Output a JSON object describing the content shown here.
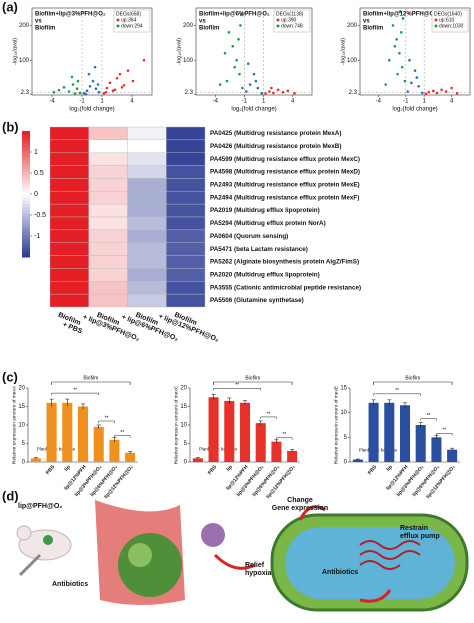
{
  "panel_labels": [
    "(a)",
    "(b)",
    "(c)",
    "(d)"
  ],
  "chart_data": [
    {
      "type": "volcano",
      "title_lines": [
        "Biofilm+lip@3%PFH@O₂",
        "vs",
        "Biofilm"
      ],
      "legend_title": "DEGs(658)",
      "xlabel": "log₂(fold change)",
      "ylabel": "-log₁₀(qval)",
      "xlim": [
        -6,
        6
      ],
      "ylim": [
        0,
        250
      ],
      "xticks": [
        -4,
        -1,
        1,
        4
      ],
      "yticks": [
        2.3,
        100,
        200
      ],
      "series": [
        {
          "name": "up:364",
          "color": "#e8312a",
          "x": [
            1.2,
            1.5,
            1.8,
            2.1,
            2.5,
            2.8,
            3.2,
            3.6,
            4.1,
            5.2,
            1.4,
            2.3,
            3.0
          ],
          "values": [
            5,
            20,
            35,
            12,
            48,
            60,
            28,
            70,
            40,
            100,
            8,
            15,
            22
          ]
        },
        {
          "name": "down:294",
          "color": "#1f9a4a",
          "x": [
            -1.2,
            -1.5,
            -1.9,
            -2.3,
            -2.8,
            -3.3,
            -1.4,
            -2.0,
            -3.8,
            -1.7
          ],
          "values": [
            6,
            18,
            30,
            10,
            22,
            14,
            40,
            52,
            8,
            4
          ]
        },
        {
          "color": "#2f6fb5",
          "x": [
            -0.8,
            -0.5,
            -0.2,
            0.1,
            0.4,
            0.7,
            -0.3,
            0.3,
            -0.6,
            0.6
          ],
          "values": [
            5,
            12,
            25,
            40,
            18,
            8,
            60,
            80,
            2,
            30
          ]
        }
      ]
    },
    {
      "type": "volcano",
      "title_lines": [
        "Biofilm+lip@6%PFH@O₂",
        "vs",
        "Biofilm"
      ],
      "legend_title": "DEGs(1138)",
      "xlabel": "log₂(fold change)",
      "ylabel": "-log₁₀(qval)",
      "xlim": [
        -6,
        6
      ],
      "ylim": [
        0,
        250
      ],
      "xticks": [
        -4,
        -1,
        1,
        4
      ],
      "yticks": [
        2.3,
        100,
        200
      ],
      "series": [
        {
          "name": "up:390",
          "color": "#e8312a",
          "x": [
            1.2,
            1.6,
            2.0,
            2.5,
            3.0,
            3.5,
            4.2,
            1.8
          ],
          "values": [
            4,
            10,
            6,
            15,
            8,
            12,
            5,
            20
          ]
        },
        {
          "name": "down:748",
          "color": "#1f9a4a",
          "x": [
            -1.2,
            -1.5,
            -1.8,
            -2.2,
            -2.6,
            -3.0,
            -1.4,
            -2.0,
            -1.6,
            -2.8,
            -3.5,
            -1.3
          ],
          "values": [
            20,
            60,
            100,
            140,
            180,
            120,
            200,
            80,
            160,
            40,
            30,
            230
          ]
        },
        {
          "color": "#2f6fb5",
          "x": [
            -0.8,
            -0.4,
            0,
            0.4,
            0.8,
            -0.6,
            0.2
          ],
          "values": [
            10,
            30,
            60,
            20,
            5,
            90,
            40
          ]
        }
      ]
    },
    {
      "type": "volcano",
      "title_lines": [
        "Biofilm+lip@12%PFH@O₂",
        "vs",
        "Biofilm"
      ],
      "legend_title": "DEGs(1640)",
      "xlabel": "log₂(fold change)",
      "ylabel": "-log₁₀(qval)",
      "xlim": [
        -6,
        6
      ],
      "ylim": [
        0,
        250
      ],
      "xticks": [
        -4,
        -1,
        1,
        4
      ],
      "yticks": [
        2.3,
        100,
        200
      ],
      "series": [
        {
          "name": "up:610",
          "color": "#e8312a",
          "x": [
            1.2,
            1.5,
            2,
            2.4,
            2.9,
            3.4,
            4,
            4.6
          ],
          "values": [
            3,
            8,
            12,
            6,
            15,
            10,
            20,
            5
          ]
        },
        {
          "name": "down:1030",
          "color": "#1f9a4a",
          "x": [
            -1.1,
            -1.4,
            -1.7,
            -2,
            -2.4,
            -2.8,
            -1.3,
            -1.9,
            -2.2,
            -1.5,
            -3.2,
            -1.6
          ],
          "values": [
            40,
            80,
            120,
            160,
            200,
            100,
            220,
            60,
            140,
            180,
            30,
            240
          ]
        },
        {
          "color": "#2f6fb5",
          "x": [
            -0.8,
            -0.4,
            0,
            0.4,
            0.8,
            -0.6,
            0.2
          ],
          "values": [
            10,
            35,
            70,
            25,
            6,
            100,
            50
          ]
        }
      ]
    },
    {
      "type": "heatmap",
      "zlim": [
        -1.5,
        1.5
      ],
      "zticks": [
        1,
        0.5,
        0,
        -0.5,
        -1
      ],
      "columns": [
        [
          "Biofilm",
          "+ PBS"
        ],
        [
          "Biofilm",
          "+ lip@3%PFH@O₂"
        ],
        [
          "Biofilm",
          "+ lip@6%PFH@O₂"
        ],
        [
          "Biofilm",
          "+ lip@12%PFH@O₂"
        ]
      ],
      "rows": [
        "PA0425 (Multidrug resistance protein MexA)",
        "PA0426 (Multidrug resistance protein MexB)",
        "PA4599 (Multidrug resistance efflux protein MexC)",
        "PA4598 (Multidrug resistance efflux protein MexD)",
        "PA2493 (Multidrug resistance efflux protein MexE)",
        "PA2494 (Multidrug resistance efflux protein MexF)",
        "PA2019 (Multidrug efflux lipoprotein)",
        "PA5294 (Multidrug efflux protein NorA)",
        "PA0604 (Quorum sensing)",
        "PA5471 (beta Lactam resistance)",
        "PA5262 (Alginate biosynthesis protein AlgZ/FimS)",
        "PA2020 (Multidrug efflux lipoprotein)",
        "PA3555 (Cationic antimicrobial peptide resistance)",
        "PA5506 (Glutamine synthetase)"
      ],
      "values": [
        [
          1.5,
          0.4,
          -0.1,
          -1.4
        ],
        [
          1.5,
          0.0,
          0.0,
          -1.4
        ],
        [
          1.5,
          0.2,
          -0.2,
          -1.4
        ],
        [
          1.5,
          0.3,
          -0.3,
          -1.3
        ],
        [
          1.5,
          0.3,
          -0.6,
          -1.3
        ],
        [
          1.5,
          0.3,
          -0.6,
          -1.3
        ],
        [
          1.5,
          0.2,
          -0.6,
          -1.3
        ],
        [
          1.5,
          0.2,
          -0.5,
          -1.3
        ],
        [
          1.5,
          0.3,
          -0.6,
          -1.2
        ],
        [
          1.5,
          0.3,
          -0.5,
          -1.2
        ],
        [
          1.5,
          0.3,
          -0.5,
          -1.2
        ],
        [
          1.5,
          0.3,
          -0.6,
          -1.2
        ],
        [
          1.5,
          0.4,
          -0.5,
          -1.3
        ],
        [
          1.5,
          0.4,
          -0.4,
          -1.3
        ]
      ]
    },
    {
      "type": "bar",
      "ylabel": "Relative expression amount of mexA",
      "color": "#f0901e",
      "group_label": "Biofilm",
      "significance": [
        "**",
        "**",
        "**"
      ],
      "categories": [
        "Planktonic bacteria",
        "PBS",
        "lip",
        "lip@12%PFH",
        "lip@3%PFH@O₂",
        "lip@6%PFH@O₂",
        "lip@12%PFH@O₂"
      ],
      "values": [
        1,
        16,
        16,
        15,
        9.5,
        6,
        2.5
      ],
      "errors": [
        0.2,
        1,
        1,
        0.7,
        0.5,
        0.6,
        0.3
      ],
      "ylim": [
        0,
        20
      ],
      "yticks": [
        0,
        5,
        10,
        15,
        20
      ]
    },
    {
      "type": "bar",
      "ylabel": "Relative expression amount of mexC",
      "color": "#e8312a",
      "group_label": "Biofilm",
      "significance": [
        "**",
        "**",
        "**"
      ],
      "categories": [
        "Planktonic bacteria",
        "PBS",
        "lip",
        "lip@12%PFH",
        "lip@3%PFH@O₂",
        "lip@6%PFH@O₂",
        "lip@12%PFH@O₂"
      ],
      "values": [
        1,
        17.5,
        16.5,
        16,
        10.5,
        5.5,
        3
      ],
      "errors": [
        0.2,
        0.8,
        0.8,
        0.6,
        0.6,
        0.5,
        0.4
      ],
      "ylim": [
        0,
        20
      ],
      "yticks": [
        0,
        5,
        10,
        15,
        20
      ]
    },
    {
      "type": "bar",
      "ylabel": "Relative expression amount of mexE",
      "color": "#2a4ea0",
      "group_label": "Biofilm",
      "significance": [
        "**",
        "**",
        "**"
      ],
      "categories": [
        "Planktonic bacteria",
        "PBS",
        "lip",
        "lip@12%PFH",
        "lip@3%PFH@O₂",
        "lip@6%PFH@O₂",
        "lip@12%PFH@O₂"
      ],
      "values": [
        0.5,
        12,
        12,
        11.5,
        7.5,
        5,
        2.5
      ],
      "errors": [
        0.1,
        0.6,
        0.6,
        0.5,
        0.5,
        0.4,
        0.3
      ],
      "ylim": [
        0,
        15
      ],
      "yticks": [
        0,
        5,
        10,
        15
      ]
    }
  ],
  "diagram": {
    "labels": [
      [
        "lip@PFH@O₂"
      ],
      [
        "Antibiotics"
      ],
      [
        "Relief",
        "hypoxia"
      ],
      [
        "Change",
        "Gene expression"
      ],
      [
        "Restrain",
        "efflux pump"
      ],
      [
        "Antibiotics"
      ]
    ]
  }
}
